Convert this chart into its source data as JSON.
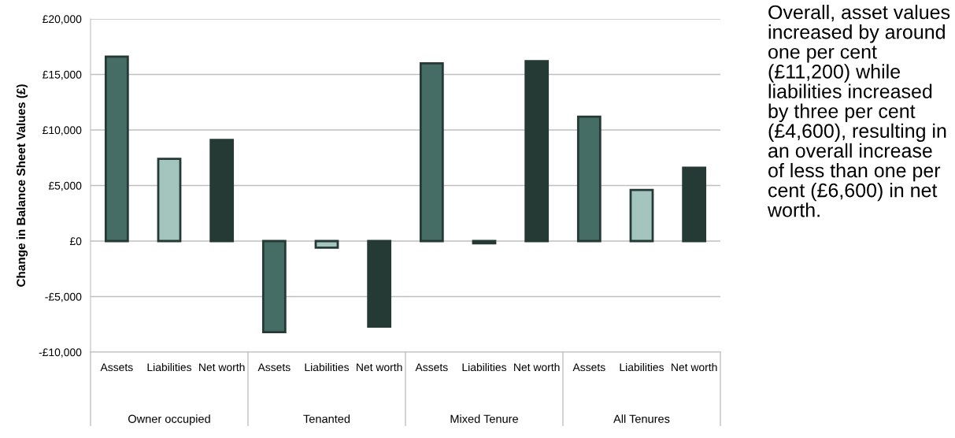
{
  "chart_data": {
    "type": "bar",
    "ylabel": "Change in Balance Sheet Values (£)",
    "categories": [
      "Assets",
      "Liabilities",
      "Net worth",
      "Assets",
      "Liabilities",
      "Net worth",
      "Assets",
      "Liabilities",
      "Net worth",
      "Assets",
      "Liabilities",
      "Net worth"
    ],
    "values": [
      16600,
      7400,
      9100,
      -8200,
      -600,
      -7700,
      16000,
      -200,
      16200,
      11200,
      4600,
      6600
    ],
    "colors": [
      "#456d65",
      "#a3c5be",
      "#253a35",
      "#456d65",
      "#a3c5be",
      "#253a35",
      "#456d65",
      "#a3c5be",
      "#253a35",
      "#456d65",
      "#a3c5be",
      "#253a35"
    ],
    "ylim": [
      -10000,
      20000
    ],
    "yticks": [
      {
        "value": -10000,
        "label": "-£10,000"
      },
      {
        "value": -5000,
        "label": "-£5,000"
      },
      {
        "value": 0,
        "label": "£0"
      },
      {
        "value": 5000,
        "label": "£5,000"
      },
      {
        "value": 10000,
        "label": "£10,000"
      },
      {
        "value": 15000,
        "label": "£15,000"
      },
      {
        "value": 20000,
        "label": "£20,000"
      }
    ],
    "grid": "y",
    "legend": false,
    "annotations": [
      "Owner occupied",
      "Tenanted",
      "Mixed Tenure",
      "All Tenures",
      "Overall, asset values increased by around one per cent (£11,200) while liabilities increased by three per cent (£4,600), resulting in an overall increase of less than one per cent (£6,600) in net worth."
    ]
  }
}
